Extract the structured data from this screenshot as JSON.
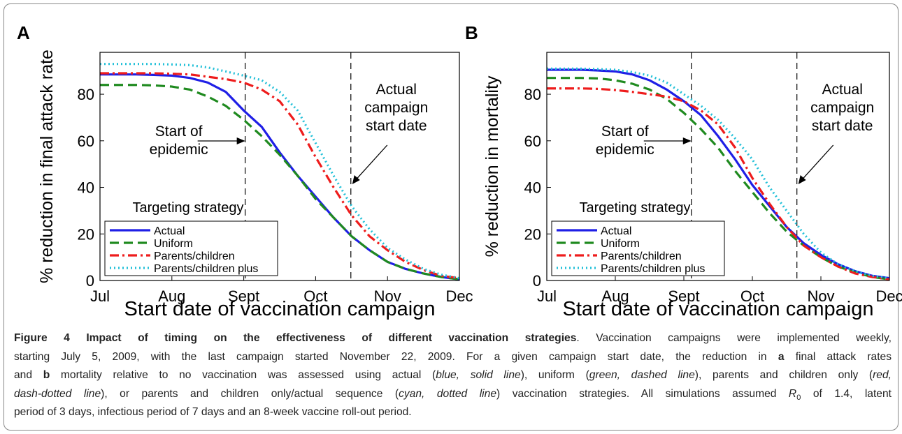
{
  "chart_data": [
    {
      "type": "line",
      "panel": "A",
      "ylabel": "% reduction in final attack rate",
      "xlabel": "Start date of vaccination campaign",
      "x": [
        0,
        0.25,
        0.5,
        0.75,
        1,
        1.25,
        1.5,
        1.75,
        2,
        2.25,
        2.5,
        2.75,
        3,
        3.25,
        3.5,
        3.75,
        4,
        4.25,
        4.5,
        4.75,
        5
      ],
      "xlim": [
        0,
        5
      ],
      "xticks": [
        {
          "value": 0,
          "label": "Jul"
        },
        {
          "value": 1,
          "label": "Aug"
        },
        {
          "value": 2,
          "label": "Sept"
        },
        {
          "value": 3,
          "label": "Oct"
        },
        {
          "value": 4,
          "label": "Nov"
        },
        {
          "value": 5,
          "label": "Dec"
        }
      ],
      "ylim": [
        0,
        98
      ],
      "yticks": [
        0,
        20,
        40,
        60,
        80
      ],
      "legend_title": "Targeting strategy",
      "legend": "lower left",
      "series": [
        {
          "name": "Actual",
          "color": "#1f1fe6",
          "dash": "solid",
          "values": [
            88.5,
            88.5,
            88.5,
            88.3,
            88,
            87,
            85,
            81,
            73,
            66,
            55,
            45,
            36,
            27,
            19,
            13,
            8,
            5,
            3,
            1.5,
            0.5
          ]
        },
        {
          "name": "Uniform",
          "color": "#1f8a1f",
          "dash": "dashed",
          "values": [
            84,
            84,
            84,
            83.8,
            83.3,
            82,
            79,
            75,
            69,
            62,
            54,
            45,
            35,
            27,
            19,
            13,
            8,
            5,
            3,
            1.5,
            0.5
          ]
        },
        {
          "name": "Parents/children",
          "color": "#ee1c1c",
          "dash": "dashdot",
          "values": [
            89,
            89,
            89,
            89,
            88.8,
            88.5,
            87.5,
            86.5,
            85,
            82,
            77,
            67,
            53,
            40,
            28,
            19,
            13,
            8,
            4.5,
            2,
            1
          ]
        },
        {
          "name": "Parents/children plus",
          "color": "#22c0d8",
          "dash": "dotted",
          "values": [
            93,
            93,
            93,
            93,
            92.8,
            92.5,
            91.5,
            89.8,
            88,
            86,
            81,
            73,
            59,
            45,
            32,
            22,
            14,
            9,
            5,
            2.5,
            1
          ]
        }
      ],
      "annotations": [
        {
          "x": 2.02,
          "text": [
            "Start of",
            "epidemic"
          ]
        },
        {
          "x": 3.49,
          "text": [
            "Actual",
            "campaign",
            "start date"
          ]
        }
      ]
    },
    {
      "type": "line",
      "panel": "B",
      "ylabel": "% reduction in mortality",
      "xlabel": "Start date of vaccination campaign",
      "x": [
        0,
        0.25,
        0.5,
        0.75,
        1,
        1.25,
        1.5,
        1.75,
        2,
        2.25,
        2.5,
        2.75,
        3,
        3.25,
        3.5,
        3.75,
        4,
        4.25,
        4.5,
        4.75,
        5
      ],
      "xlim": [
        0,
        5
      ],
      "xticks": [
        {
          "value": 0,
          "label": "Jul"
        },
        {
          "value": 1,
          "label": "Aug"
        },
        {
          "value": 2,
          "label": "Sept"
        },
        {
          "value": 3,
          "label": "Oct"
        },
        {
          "value": 4,
          "label": "Nov"
        },
        {
          "value": 5,
          "label": "Dec"
        }
      ],
      "ylim": [
        0,
        98
      ],
      "yticks": [
        0,
        20,
        40,
        60,
        80
      ],
      "legend_title": "Targeting strategy",
      "legend": "lower left",
      "series": [
        {
          "name": "Actual",
          "color": "#1f1fe6",
          "dash": "solid",
          "values": [
            90.5,
            90.5,
            90.5,
            90.2,
            89.8,
            88.5,
            86,
            82,
            77,
            71,
            62,
            52,
            41,
            32,
            23,
            16,
            11,
            7,
            4,
            2,
            1
          ]
        },
        {
          "name": "Uniform",
          "color": "#1f8a1f",
          "dash": "dashed",
          "values": [
            87,
            87,
            87,
            86.8,
            86,
            84.5,
            82,
            78,
            72,
            65,
            57,
            47,
            38,
            29,
            21,
            15,
            10,
            6,
            3.5,
            1.5,
            0.5
          ]
        },
        {
          "name": "Parents/children",
          "color": "#ee1c1c",
          "dash": "dashdot",
          "values": [
            82.5,
            82.5,
            82.5,
            82.3,
            81.8,
            81,
            80,
            79,
            77,
            73,
            67,
            57,
            44,
            33,
            23,
            15,
            10,
            6,
            3,
            1.5,
            0.5
          ]
        },
        {
          "name": "Parents/children plus",
          "color": "#22c0d8",
          "dash": "dotted",
          "values": [
            91,
            91,
            91,
            90.8,
            90.5,
            89.5,
            88,
            85,
            80,
            75,
            69,
            61,
            52,
            40,
            30,
            20,
            12,
            7,
            4,
            2,
            1
          ]
        }
      ],
      "annotations": [
        {
          "x": 2.11,
          "text": [
            "Start of",
            "epidemic"
          ]
        },
        {
          "x": 3.65,
          "text": [
            "Actual",
            "campaign",
            "start date"
          ]
        }
      ]
    }
  ],
  "caption": {
    "lines": [
      [
        {
          "text": "Figure 4 Impact of timing on the effectiveness of different vaccination strategies",
          "style": "bold"
        },
        {
          "text": ". Vaccination campaigns were implemented weekly,",
          "style": "normal"
        }
      ],
      [
        {
          "text": "starting July 5, 2009, with the last campaign started November 22, 2009. For a given campaign start date, the reduction in ",
          "style": "normal"
        },
        {
          "text": "a",
          "style": "bold"
        },
        {
          "text": " final attack rates",
          "style": "normal"
        }
      ],
      [
        {
          "text": "and ",
          "style": "normal"
        },
        {
          "text": "b",
          "style": "bold"
        },
        {
          "text": " mortality relative to no vaccination was assessed using actual (",
          "style": "normal"
        },
        {
          "text": "blue, solid line",
          "style": "italic"
        },
        {
          "text": "), uniform (",
          "style": "normal"
        },
        {
          "text": "green, dashed line",
          "style": "italic"
        },
        {
          "text": "), parents and children only (",
          "style": "normal"
        },
        {
          "text": "red,",
          "style": "italic"
        }
      ],
      [
        {
          "text": "dash-dotted line",
          "style": "italic"
        },
        {
          "text": "), or parents and children only/actual sequence (",
          "style": "normal"
        },
        {
          "text": "cyan, dotted line",
          "style": "italic"
        },
        {
          "text": ") vaccination strategies. All simulations assumed ",
          "style": "normal"
        },
        {
          "text": "R",
          "style": "italic"
        },
        {
          "text": "0",
          "style": "subscript"
        },
        {
          "text": " of 1.4, latent",
          "style": "normal"
        }
      ],
      [
        {
          "text": "period of 3 days, infectious period of 7 days and an 8-week vaccine roll-out period.",
          "style": "normal"
        }
      ]
    ]
  }
}
